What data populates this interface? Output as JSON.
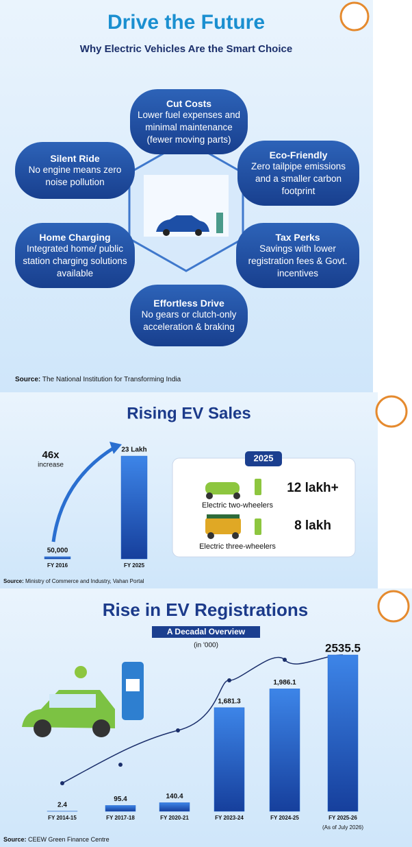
{
  "infographic": {
    "title": "Drive the Future",
    "subtitle": "Why Electric Vehicles Are the Smart Choice",
    "benefits": [
      {
        "title": "Cut Costs",
        "text": "Lower fuel expenses and minimal maintenance (fewer moving parts)"
      },
      {
        "title": "Silent Ride",
        "text": "No engine means zero noise pollution"
      },
      {
        "title": "Eco-Friendly",
        "text": "Zero tailpipe emissions and a smaller carbon footprint"
      },
      {
        "title": "Home Charging",
        "text": "Integrated home/ public station charging solutions available"
      },
      {
        "title": "Tax Perks",
        "text": "Savings with lower registration fees & Govt. incentives"
      },
      {
        "title": "Effortless Drive",
        "text": "No gears or clutch-only acceleration & braking"
      }
    ],
    "source_label": "Source:",
    "source": "The National Institution for Transforming India"
  },
  "chart_data": [
    {
      "type": "bar",
      "title": "Rising EV Sales",
      "categories": [
        "FY 2016",
        "FY 2025"
      ],
      "values": [
        50000,
        2300000
      ],
      "value_labels": [
        "50,000",
        "23 Lakh"
      ],
      "color": "#2266cc",
      "annotation": "46x",
      "annotation_text": "increase",
      "inset": {
        "year": "2025",
        "items": [
          {
            "label": "Electric two-wheelers",
            "value": "12 lakh+"
          },
          {
            "label": "Electric three-wheelers",
            "value": "8 lakh"
          }
        ]
      },
      "source_label": "Source:",
      "source": "Ministry of Commerce and Industry, Vahan Portal"
    },
    {
      "type": "bar",
      "title": "Rise in EV Registrations",
      "subtitle": "A Decadal Overview",
      "unit": "(in '000)",
      "categories": [
        "FY 2014-15",
        "FY 2017-18",
        "FY 2020-21",
        "FY 2023-24",
        "FY 2024-25",
        "FY 2025-26"
      ],
      "note": "(As of July 2026)",
      "values": [
        2.4,
        95.4,
        140.4,
        1681.3,
        1986.1,
        2535.5
      ],
      "value_labels": [
        "2.4",
        "95.4",
        "140.4",
        "1,681.3",
        "1,986.1",
        "2535.5"
      ],
      "color": "#2266cc",
      "source_label": "Source:",
      "source": "CEEW Green Finance Centre"
    }
  ]
}
